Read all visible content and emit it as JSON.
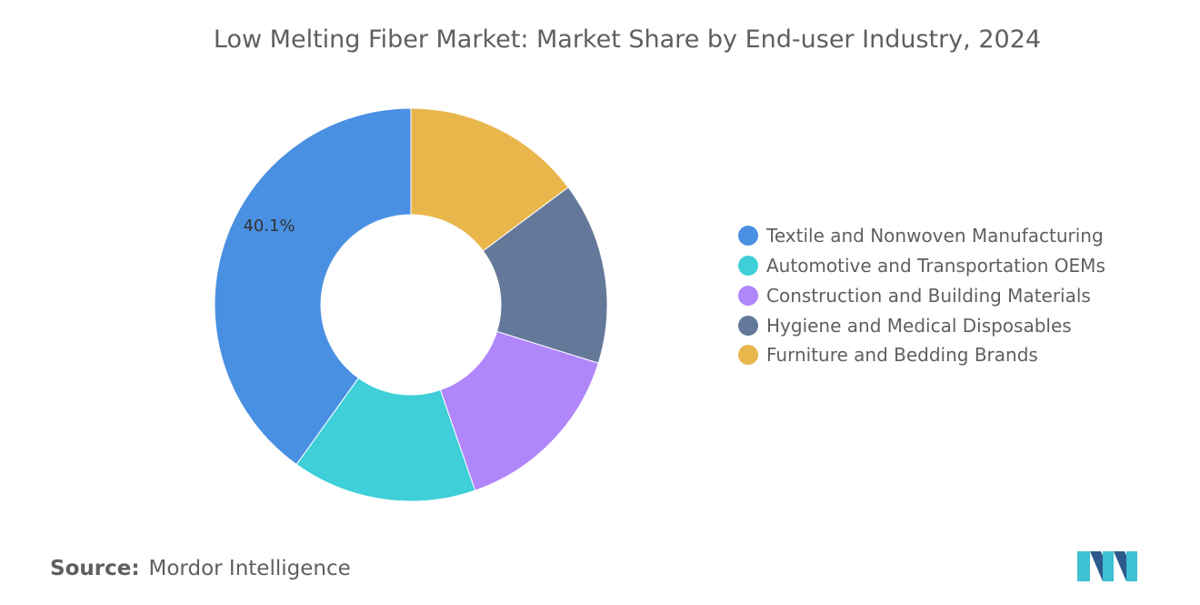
{
  "chart_data": {
    "type": "pie",
    "title": "Low Melting Fiber Market: Market Share by End-user Industry, 2024",
    "donut": true,
    "categories": [
      "Textile and Nonwoven Manufacturing",
      "Automotive and Transportation OEMs",
      "Construction and Building Materials",
      "Hygiene and Medical Disposables",
      "Furniture and Bedding Brands"
    ],
    "values": [
      40.1,
      15.2,
      14.9,
      15.0,
      14.8
    ],
    "colors": [
      "#4a90e2",
      "#3ecfd9",
      "#b086fb",
      "#64789a",
      "#e9b64b"
    ],
    "data_labels": [
      {
        "slice": 0,
        "text": "40.1%"
      }
    ],
    "legend_placement": "right"
  },
  "source": {
    "label": "Source:",
    "value": "Mordor Intelligence"
  },
  "logo": {
    "name": "mordor-intelligence-logo",
    "colors": [
      "#2b5a8b",
      "#3ec1d3"
    ]
  }
}
